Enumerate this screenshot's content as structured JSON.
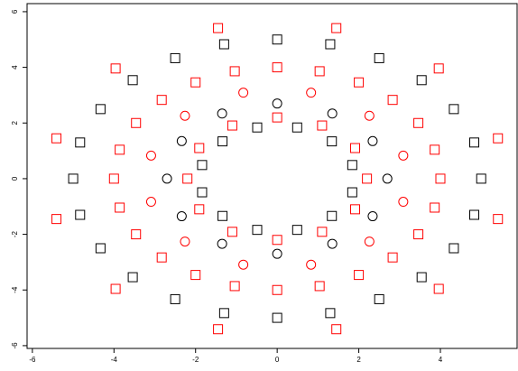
{
  "chart_data": {
    "type": "scatter",
    "xlim": [
      -6.13,
      5.88
    ],
    "ylim": [
      -6.1,
      6.29
    ],
    "xticks": [
      -6,
      -4,
      -2,
      0,
      2,
      4
    ],
    "yticks": [
      -6,
      -4,
      -2,
      0,
      2,
      4,
      6
    ],
    "series": [
      {
        "marker": "square",
        "color": "#000000",
        "x": [
          5,
          4.83,
          4.33,
          3.54,
          2.5,
          1.3,
          0,
          -1.3,
          -2.5,
          -3.54,
          -4.33,
          -4.83,
          -5,
          -4.83,
          -4.33,
          -3.54,
          -2.5,
          -1.3,
          0,
          1.3,
          2.5,
          3.54,
          4.33,
          4.83,
          1.84,
          1.34,
          0.49,
          -0.49,
          -1.34,
          -1.84,
          -1.84,
          -1.34,
          -0.49,
          0.49,
          1.34,
          1.84
        ],
        "y": [
          0,
          1.3,
          2.5,
          3.54,
          4.33,
          4.83,
          5,
          4.83,
          4.33,
          3.54,
          2.5,
          1.3,
          0,
          -1.3,
          -2.5,
          -3.54,
          -4.33,
          -4.83,
          -5,
          -4.83,
          -4.33,
          -3.54,
          -2.5,
          -1.3,
          0.49,
          1.34,
          1.84,
          1.84,
          1.34,
          0.49,
          -0.49,
          -1.34,
          -1.84,
          -1.84,
          -1.34,
          -0.49
        ]
      },
      {
        "marker": "square",
        "color": "#ff0000",
        "x": [
          4,
          3.86,
          3.46,
          2.83,
          2,
          1.04,
          0,
          -1.04,
          -2,
          -2.83,
          -3.46,
          -3.86,
          -4,
          -3.86,
          -3.46,
          -2.83,
          -2,
          -1.04,
          0,
          1.04,
          2,
          2.83,
          3.46,
          3.86,
          5.41,
          3.96,
          1.45,
          -1.45,
          -3.96,
          -5.41,
          -5.41,
          -3.96,
          -1.45,
          1.45,
          3.96,
          5.41,
          2.2,
          1.91,
          1.1,
          0,
          -1.1,
          -1.91,
          -2.2,
          -1.91,
          -1.1,
          0,
          1.1,
          1.91
        ],
        "y": [
          0,
          1.04,
          2,
          2.83,
          3.46,
          3.86,
          4,
          3.86,
          3.46,
          2.83,
          2,
          1.04,
          0,
          -1.04,
          -2,
          -2.83,
          -3.46,
          -3.86,
          -4,
          -3.86,
          -3.46,
          -2.83,
          -2,
          -1.04,
          1.45,
          3.96,
          5.41,
          5.41,
          3.96,
          1.45,
          -1.45,
          -3.96,
          -5.41,
          -5.41,
          -3.96,
          -1.45,
          0,
          1.1,
          1.91,
          2.2,
          1.91,
          1.1,
          0,
          -1.1,
          -1.91,
          -2.2,
          -1.91,
          -1.1
        ]
      },
      {
        "marker": "circle",
        "color": "#000000",
        "x": [
          2.7,
          2.34,
          1.35,
          0,
          -1.35,
          -2.34,
          -2.7,
          -2.34,
          -1.35,
          0,
          1.35,
          2.34
        ],
        "y": [
          0,
          1.35,
          2.34,
          2.7,
          2.34,
          1.35,
          0,
          -1.35,
          -2.34,
          -2.7,
          -2.34,
          -1.35
        ]
      },
      {
        "marker": "circle",
        "color": "#ff0000",
        "x": [
          3.09,
          2.26,
          0.83,
          -0.83,
          -2.26,
          -3.09,
          -3.09,
          -2.26,
          -0.83,
          0.83,
          2.26,
          3.09
        ],
        "y": [
          0.83,
          2.26,
          3.09,
          3.09,
          2.26,
          0.83,
          -0.83,
          -2.26,
          -3.09,
          -3.09,
          -2.26,
          -0.83
        ]
      }
    ]
  }
}
